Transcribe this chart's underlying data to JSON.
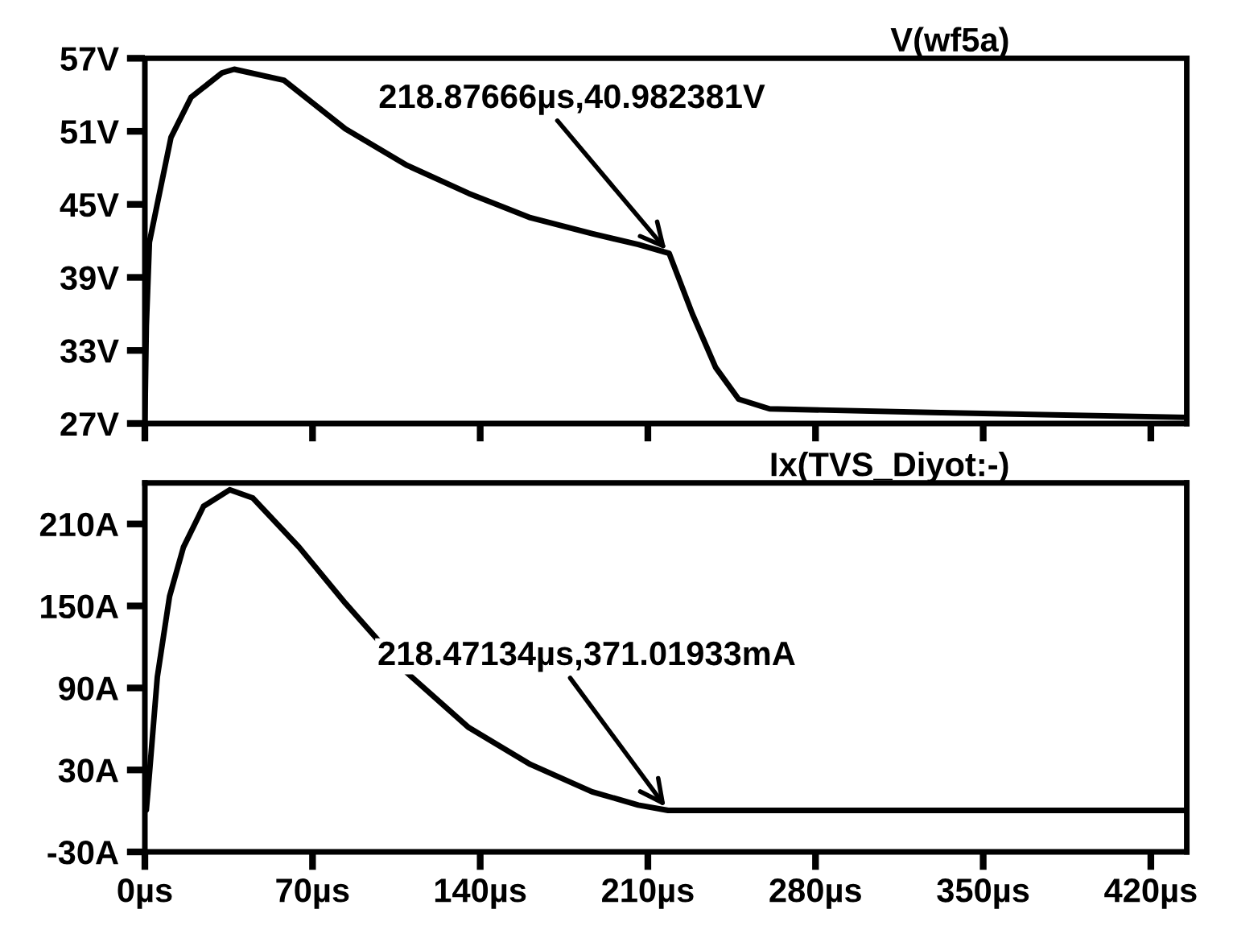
{
  "chart_data": [
    {
      "type": "line",
      "title": "V(wf5a)",
      "x": [
        0,
        0.6,
        1.9,
        10.9,
        19.3,
        32.2,
        37.3,
        58,
        83.7,
        109.5,
        135.2,
        161,
        186.7,
        206,
        218.87666,
        228.6,
        238.3,
        247.9,
        260.8,
        328.4,
        435
      ],
      "series": [
        {
          "color": "#000000",
          "values": [
            27,
            35,
            41.9,
            50.5,
            53.8,
            55.8,
            56.1,
            55.2,
            51.2,
            48.2,
            45.9,
            43.9,
            42.6,
            41.7,
            40.982381,
            36.0,
            31.6,
            29.0,
            28.2,
            27.9,
            27.5
          ]
        }
      ],
      "xlim": [
        0,
        435
      ],
      "ylim": [
        27,
        57
      ],
      "yticks": [
        {
          "value": 27,
          "label": "27V"
        },
        {
          "value": 33,
          "label": "33V"
        },
        {
          "value": 39,
          "label": "39V"
        },
        {
          "value": 45,
          "label": "45V"
        },
        {
          "value": 51,
          "label": "51V"
        },
        {
          "value": 57,
          "label": "57V"
        }
      ],
      "xticks": [
        {
          "value": 0,
          "label": null
        },
        {
          "value": 70,
          "label": null
        },
        {
          "value": 140,
          "label": null
        },
        {
          "value": 210,
          "label": null
        },
        {
          "value": 280,
          "label": null
        },
        {
          "value": 350,
          "label": null
        },
        {
          "value": 420,
          "label": null
        }
      ],
      "tick_labels": "y",
      "grid": false,
      "annotations": [
        {
          "text": "218.87666µs,40.982381V",
          "x": 218.87666,
          "y": 40.982381
        }
      ]
    },
    {
      "type": "line",
      "title": "Ix(TVS_Diyot:-)",
      "x": [
        0,
        0.6,
        1.9,
        5.2,
        10.3,
        16.1,
        24.5,
        35.4,
        45.1,
        64.4,
        83.7,
        109.5,
        135.2,
        161,
        186.7,
        206,
        218.47134,
        435
      ],
      "series": [
        {
          "color": "#000000",
          "values": [
            0,
            0.6,
            27,
            98,
            157,
            193,
            223,
            235,
            229,
            193,
            152,
            101,
            61,
            34,
            14,
            4.3,
            0.37101933,
            0.37
          ]
        }
      ],
      "xlim": [
        0,
        435
      ],
      "ylim": [
        -30,
        240
      ],
      "yticks": [
        {
          "value": -30,
          "label": "-30A"
        },
        {
          "value": 30,
          "label": "30A"
        },
        {
          "value": 90,
          "label": "90A"
        },
        {
          "value": 150,
          "label": "150A"
        },
        {
          "value": 210,
          "label": "210A"
        }
      ],
      "xticks": [
        {
          "value": 0,
          "label": "0µs"
        },
        {
          "value": 70,
          "label": "70µs"
        },
        {
          "value": 140,
          "label": "140µs"
        },
        {
          "value": 210,
          "label": "210µs"
        },
        {
          "value": 280,
          "label": "280µs"
        },
        {
          "value": 350,
          "label": "350µs"
        },
        {
          "value": 420,
          "label": "420µs"
        }
      ],
      "grid": false,
      "annotations": [
        {
          "text": "218.47134µs,371.01933mA",
          "x": 218.47134,
          "y": 0.37101933
        }
      ]
    }
  ]
}
